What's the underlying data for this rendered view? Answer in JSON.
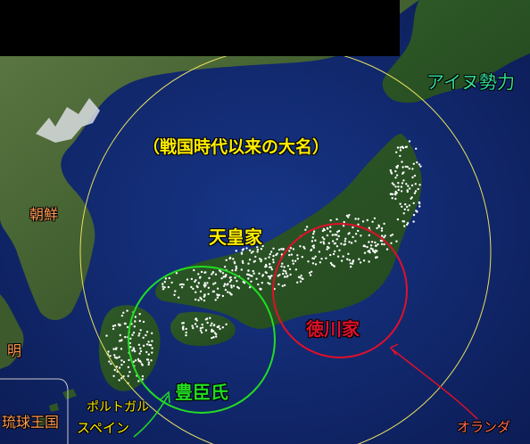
{
  "labels": {
    "ainu": "アイヌ勢力",
    "daimyo": "（戦国時代以来の大名）",
    "korea": "朝鮮",
    "emperor": "天皇家",
    "tokugawa": "徳川家",
    "ming": "明",
    "toyotomi": "豊臣氏",
    "portugal": "ポルトガル",
    "spain": "スペイン",
    "ryukyu": "琉球王国",
    "netherlands": "オランダ"
  },
  "colors": {
    "sea": "#12286b",
    "land": "#3f6b2f",
    "big_circle": "#e8e060",
    "tokugawa": "#e0102a",
    "toyotomi": "#22dd22",
    "ainu": "#33dd99",
    "daimyo": "#ffee00",
    "emperor": "#ffee00",
    "korea": "#ff9a55",
    "ming": "#ff9a55",
    "ryukyu": "#ff9a55",
    "portugal": "#ffee00",
    "spain": "#ffee00",
    "netherlands": "#ff6a55"
  }
}
